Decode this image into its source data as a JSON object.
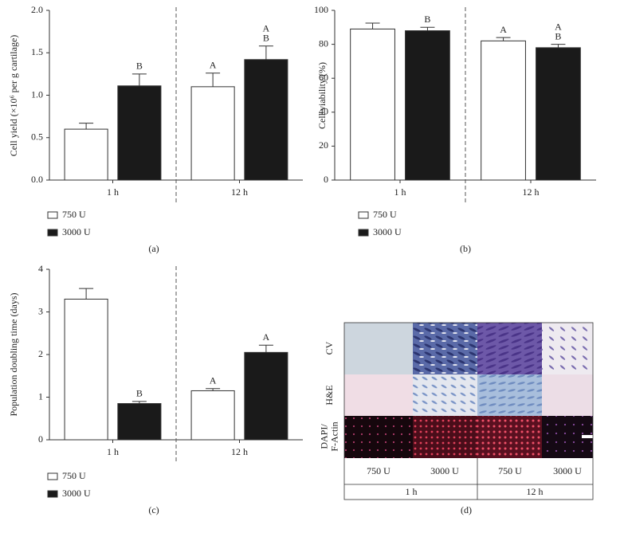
{
  "chart_data": [
    {
      "type": "bar",
      "y_label": "Cell yield (×10⁶ per g cartilage)",
      "categories": [
        "1 h",
        "12 h"
      ],
      "series": [
        {
          "name": "750 U",
          "color": "#ffffff",
          "values": [
            0.6,
            1.1
          ],
          "errors": [
            0.07,
            0.16
          ],
          "letters": [
            [],
            [
              "A"
            ]
          ]
        },
        {
          "name": "3000 U",
          "color": "#1a1a1a",
          "values": [
            1.11,
            1.42
          ],
          "errors": [
            0.14,
            0.16
          ],
          "letters": [
            [
              "B"
            ],
            [
              "A",
              "B"
            ]
          ]
        }
      ],
      "ylim": [
        0,
        2
      ],
      "yticks": [
        {
          "value": 0,
          "label": "0.0"
        },
        0.5,
        {
          "value": 1,
          "label": "1.0"
        },
        1.5,
        {
          "value": 2,
          "label": "2.0"
        }
      ],
      "grid": false
    },
    {
      "type": "bar",
      "y_label": "Cell viability (%)",
      "categories": [
        "1 h",
        "12 h"
      ],
      "series": [
        {
          "name": "750 U",
          "color": "#ffffff",
          "values": [
            89,
            82
          ],
          "errors": [
            3.5,
            2
          ],
          "letters": [
            [],
            [
              "A"
            ]
          ]
        },
        {
          "name": "3000 U",
          "color": "#1a1a1a",
          "values": [
            88,
            78
          ],
          "errors": [
            2,
            2
          ],
          "letters": [
            [
              "B"
            ],
            [
              "A",
              "B"
            ]
          ]
        }
      ],
      "ylim": [
        0,
        100
      ],
      "yticks": [
        0,
        20,
        40,
        60,
        80,
        100
      ],
      "grid": false
    },
    {
      "type": "bar",
      "y_label": "Population doubling time (days)",
      "categories": [
        "1 h",
        "12 h"
      ],
      "series": [
        {
          "name": "750 U",
          "color": "#ffffff",
          "values": [
            3.3,
            1.15
          ],
          "errors": [
            0.25,
            0.05
          ],
          "letters": [
            [],
            [
              "A"
            ]
          ]
        },
        {
          "name": "3000 U",
          "color": "#1a1a1a",
          "values": [
            0.85,
            2.05
          ],
          "errors": [
            0.05,
            0.17
          ],
          "letters": [
            [
              "B"
            ],
            [
              "A"
            ]
          ]
        }
      ],
      "ylim": [
        0,
        4
      ],
      "yticks": [
        0,
        1,
        2,
        3,
        4
      ],
      "grid": false
    }
  ],
  "panel_labels": [
    "(a)",
    "(b)",
    "(c)",
    "(d)"
  ],
  "panel_d": {
    "rows": [
      [
        "CV"
      ],
      [
        "H&E"
      ],
      [
        "DAPI/",
        "F-Actin"
      ]
    ],
    "columns": [
      "750 U",
      "3000 U",
      "750 U",
      "3000 U"
    ],
    "groups": [
      "1 h",
      "12 h"
    ]
  }
}
